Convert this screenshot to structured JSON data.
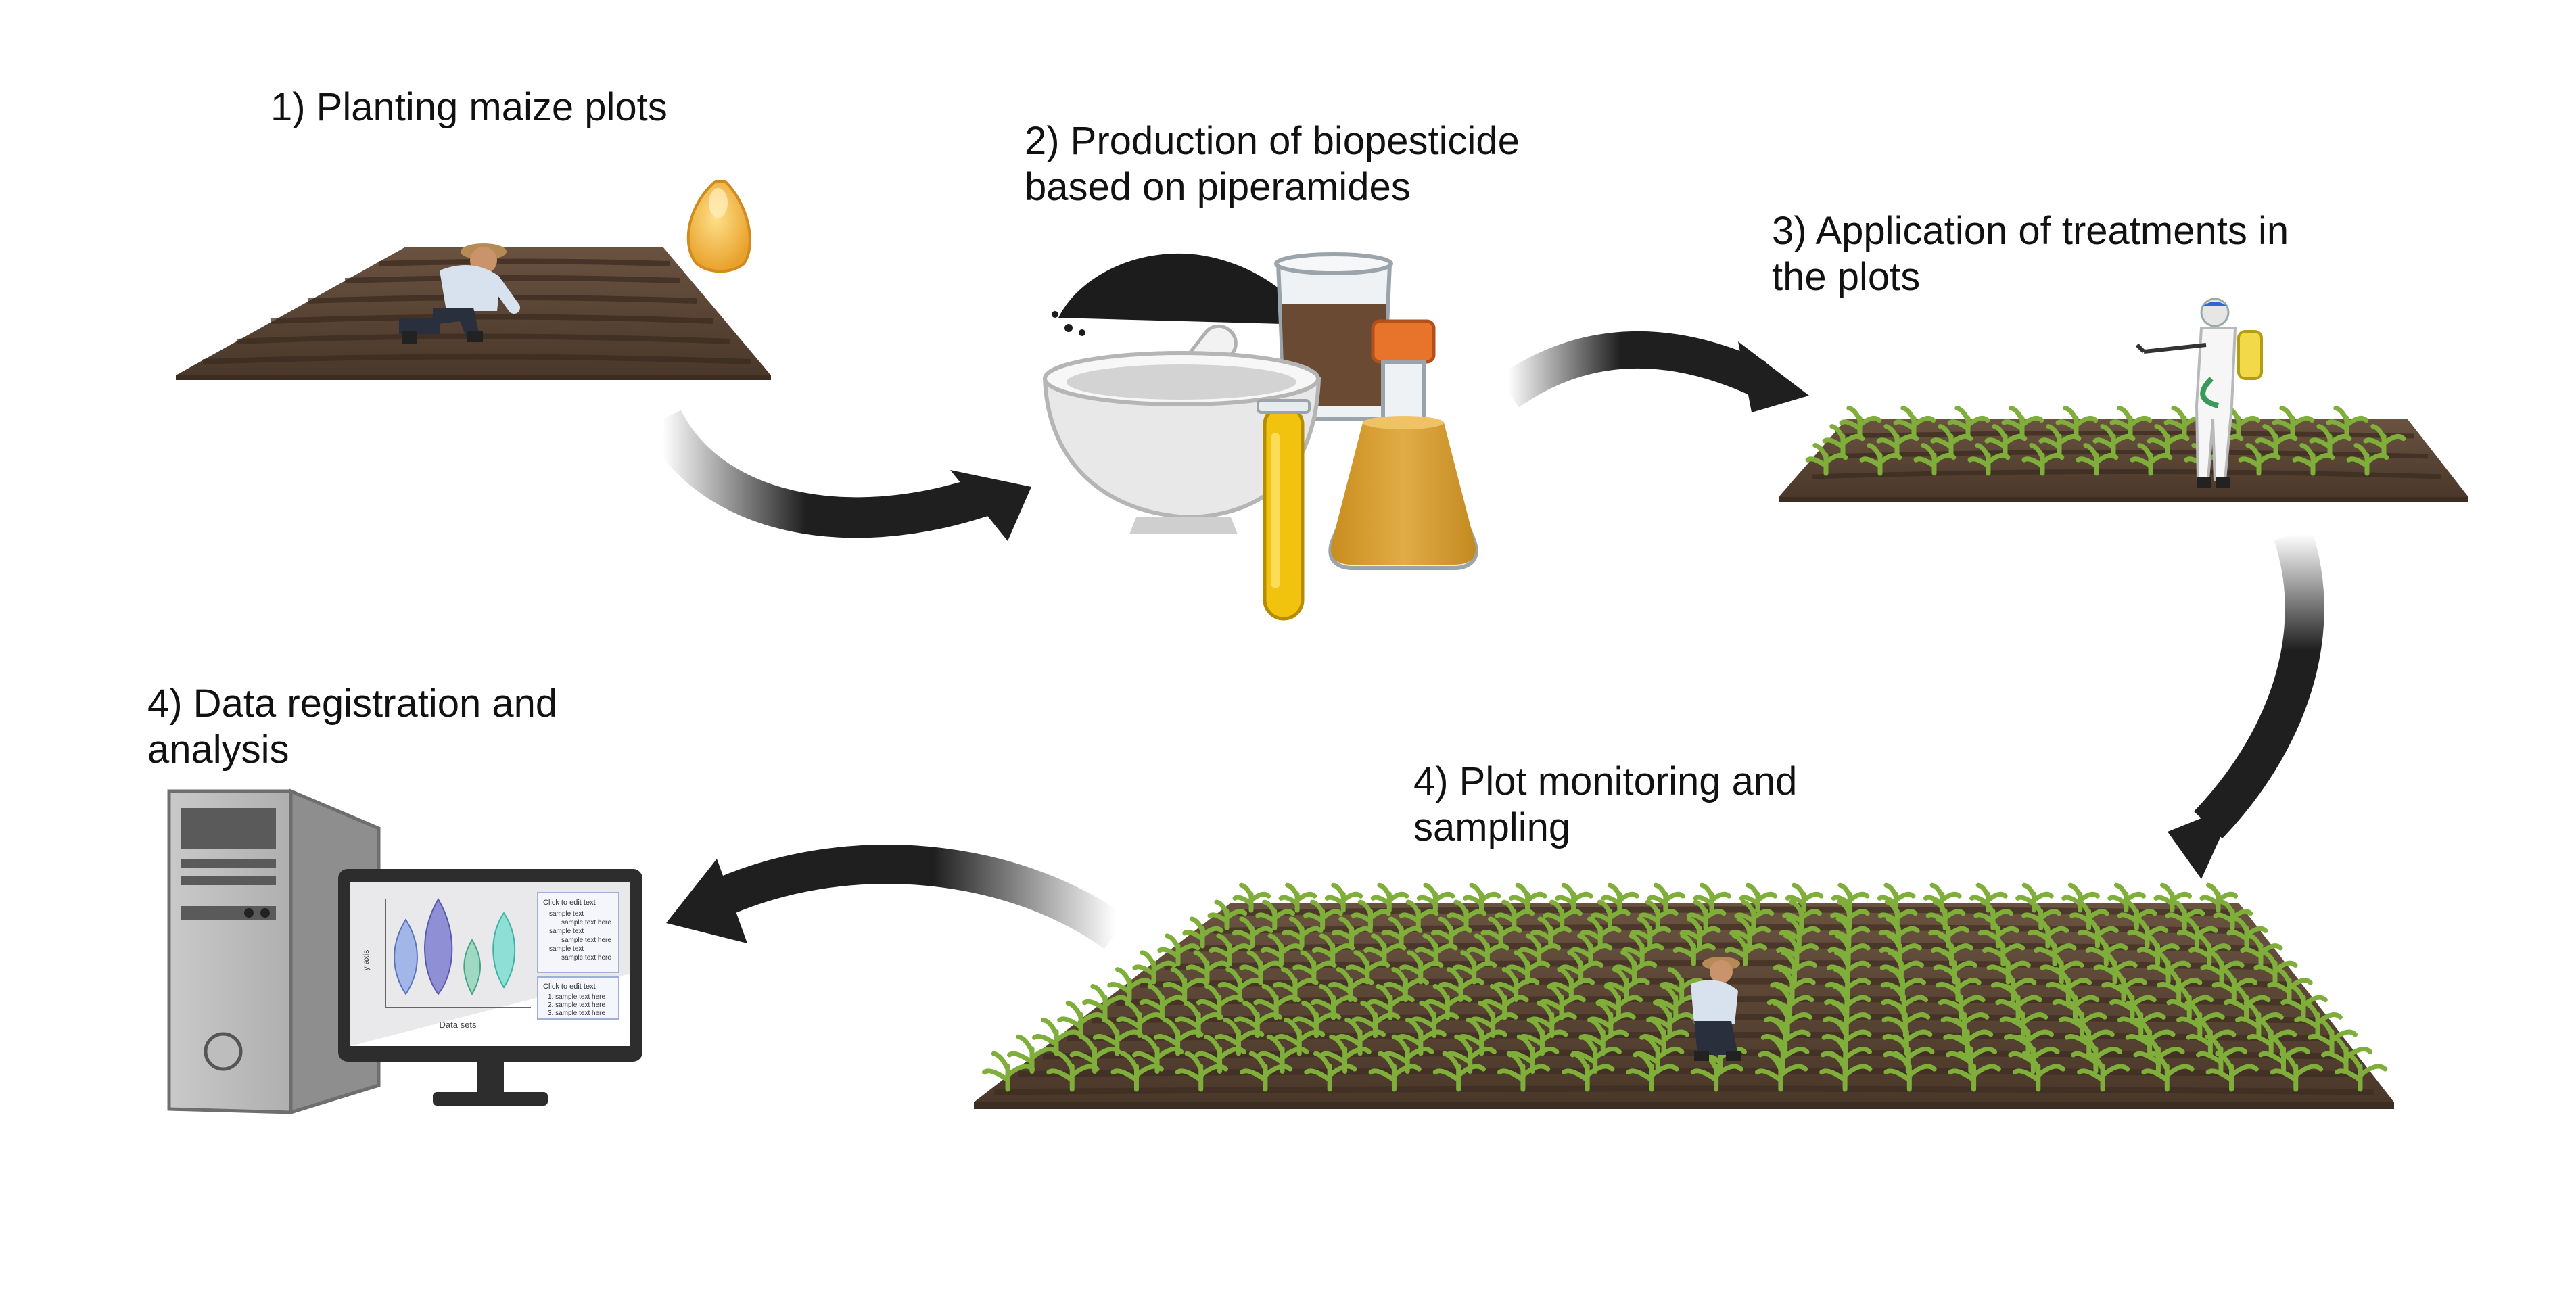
{
  "steps": [
    {
      "id": "step1",
      "lines": [
        "1) Planting maize plots"
      ]
    },
    {
      "id": "step2",
      "lines": [
        "2) Production of biopesticide",
        "based on piperamides"
      ]
    },
    {
      "id": "step3",
      "lines": [
        "3) Application of treatments in",
        "the plots"
      ]
    },
    {
      "id": "step4a",
      "lines": [
        "4) Plot monitoring and",
        "sampling"
      ]
    },
    {
      "id": "step4b",
      "lines": [
        "4) Data registration and",
        "analysis"
      ]
    }
  ],
  "monitor_chart": {
    "xlabel": "Data sets",
    "ylabel": "y axis",
    "legend_box_1": {
      "title": "Click to edit text",
      "items": [
        "sample text",
        "sample text here",
        "sample text",
        "sample text here",
        "sample text",
        "sample text here"
      ]
    },
    "legend_box_2": {
      "title": "Click to edit text",
      "items": [
        "1. sample text here",
        "2. sample text here",
        "3. sample text here"
      ]
    }
  },
  "icons": {
    "arrows": [
      "curved-arrow-icon"
    ],
    "items": [
      "maize-seed-icon",
      "farmer-icon",
      "sprayer-icon",
      "mortar-pestle-icon",
      "flask-icon",
      "beaker-icon",
      "test-tube-icon",
      "computer-icon",
      "monitor-icon"
    ]
  },
  "colors": {
    "soil": "#5a4534",
    "soil_dark": "#3d2c20",
    "maize_green": "#7fae3a",
    "arrow": "#1f1f1f",
    "seed": "#f3b541",
    "liquid": "#d9a233",
    "tube_liquid": "#f2c10f",
    "flask_cap": "#e8742c"
  }
}
